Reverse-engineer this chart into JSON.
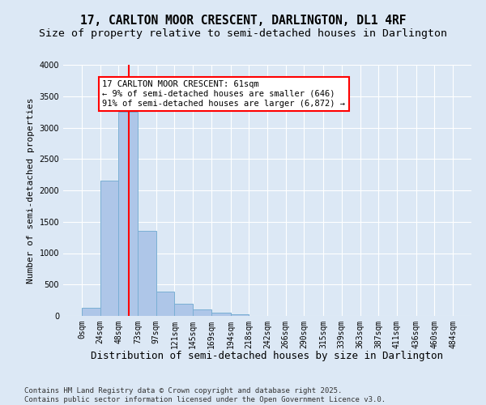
{
  "title1": "17, CARLTON MOOR CRESCENT, DARLINGTON, DL1 4RF",
  "title2": "Size of property relative to semi-detached houses in Darlington",
  "xlabel": "Distribution of semi-detached houses by size in Darlington",
  "ylabel": "Number of semi-detached properties",
  "bins": [
    0,
    24,
    48,
    73,
    97,
    121,
    145,
    169,
    194,
    218,
    242,
    266,
    290,
    315,
    339,
    363,
    387,
    411,
    436,
    460,
    484
  ],
  "bin_labels": [
    "0sqm",
    "24sqm",
    "48sqm",
    "73sqm",
    "97sqm",
    "121sqm",
    "145sqm",
    "169sqm",
    "194sqm",
    "218sqm",
    "242sqm",
    "266sqm",
    "290sqm",
    "315sqm",
    "339sqm",
    "363sqm",
    "387sqm",
    "411sqm",
    "436sqm",
    "460sqm",
    "484sqm"
  ],
  "bar_heights": [
    130,
    2160,
    3250,
    1350,
    390,
    190,
    100,
    50,
    30,
    0,
    0,
    0,
    0,
    0,
    0,
    0,
    0,
    0,
    0,
    0
  ],
  "bar_color": "#aec6e8",
  "bar_edgecolor": "#7aafd4",
  "property_line_x": 61,
  "property_line_color": "red",
  "ylim": [
    0,
    4000
  ],
  "yticks": [
    0,
    500,
    1000,
    1500,
    2000,
    2500,
    3000,
    3500,
    4000
  ],
  "annotation_title": "17 CARLTON MOOR CRESCENT: 61sqm",
  "annotation_line1": "← 9% of semi-detached houses are smaller (646)",
  "annotation_line2": "91% of semi-detached houses are larger (6,872) →",
  "annotation_box_color": "red",
  "background_color": "#dce8f5",
  "plot_bg_color": "#dce8f5",
  "footer1": "Contains HM Land Registry data © Crown copyright and database right 2025.",
  "footer2": "Contains public sector information licensed under the Open Government Licence v3.0.",
  "title1_fontsize": 10.5,
  "title2_fontsize": 9.5,
  "xlabel_fontsize": 9,
  "ylabel_fontsize": 8,
  "tick_fontsize": 7,
  "footer_fontsize": 6.5,
  "ann_fontsize": 7.5
}
